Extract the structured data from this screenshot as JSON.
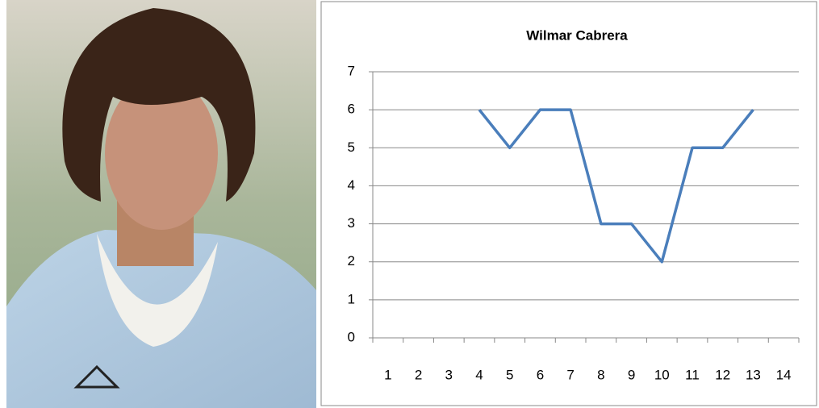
{
  "chart_data": {
    "type": "line",
    "title": "Wilmar Cabrera",
    "categories": [
      "1",
      "2",
      "3",
      "4",
      "5",
      "6",
      "7",
      "8",
      "9",
      "10",
      "11",
      "12",
      "13",
      "14"
    ],
    "series": [
      {
        "color": "#4a7ebb",
        "values": [
          null,
          null,
          null,
          6,
          5,
          6,
          6,
          3,
          3,
          2,
          5,
          5,
          6,
          null
        ]
      }
    ],
    "ylim": [
      0,
      7
    ],
    "yticks": [
      0,
      1,
      2,
      3,
      4,
      5,
      6,
      7
    ],
    "grid": true
  }
}
